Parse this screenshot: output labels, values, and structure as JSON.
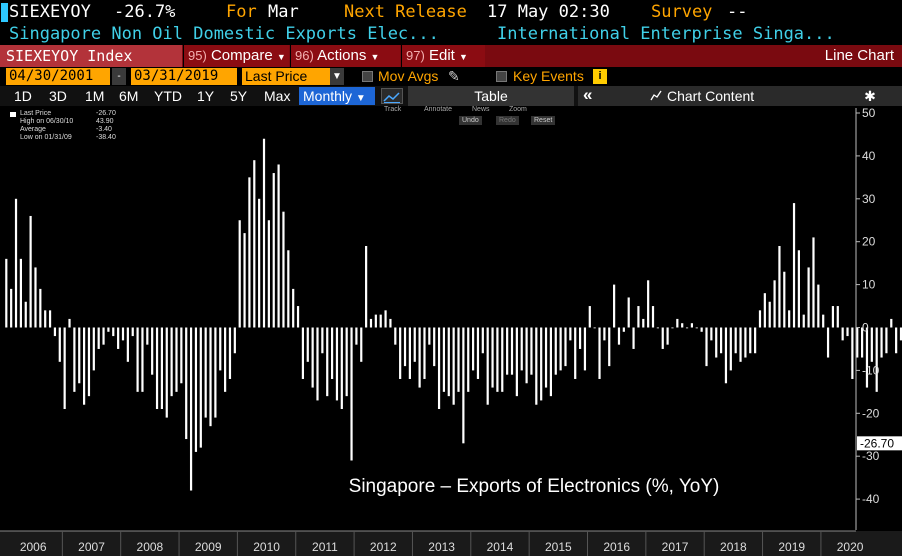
{
  "header": {
    "ticker": "SIEXEYOY",
    "last_value": "-26.7%",
    "for_label": "For",
    "for_value": "Mar",
    "next_release_label": "Next Release",
    "next_release_value": "17 May 02:30",
    "survey_label": "Survey",
    "survey_value": "--"
  },
  "subtitle": {
    "description": "Singapore Non Oil Domestic Exports Elec...",
    "source": "International Enterprise Singa..."
  },
  "toolbar": {
    "security": "SIEXEYOY Index",
    "compare_num": "95)",
    "compare_label": "Compare",
    "actions_num": "96)",
    "actions_label": "Actions",
    "edit_num": "97)",
    "edit_label": "Edit",
    "chart_type": "Line Chart"
  },
  "settings": {
    "start_date": "04/30/2001",
    "end_date": "03/31/2019",
    "field": "Last Price",
    "mov_avgs": "Mov Avgs",
    "key_events": "Key Events",
    "info": "i"
  },
  "periods": [
    "1D",
    "3D",
    "1M",
    "6M",
    "YTD",
    "1Y",
    "5Y",
    "Max"
  ],
  "frequency": "Monthly",
  "table_label": "Table",
  "collapse_icon": "«",
  "chart_content_label": "Chart Content",
  "chart_tools": {
    "track": "Track",
    "annotate": "Annotate",
    "news": "News",
    "zoom": "Zoom",
    "undo": "Undo",
    "redo": "Redo",
    "reset": "Reset"
  },
  "legend": [
    {
      "label": "Last Price",
      "value": "-26.70"
    },
    {
      "label": "High on 06/30/10",
      "value": "43.90"
    },
    {
      "label": "Average",
      "value": "-3.40"
    },
    {
      "label": "Low on 01/31/09",
      "value": "-38.40"
    }
  ],
  "colors": {
    "amber": "#ffa500",
    "cyan": "#40d0e8",
    "toolbar_red": "#7a0a10",
    "selected_blue": "#1d66d6",
    "bars": "#ffffff"
  },
  "chart_data": {
    "type": "bar",
    "title": "Singapore – Exports of Electronics (%, YoY)",
    "ylim": [
      -45,
      50
    ],
    "yticks": [
      50,
      40,
      30,
      20,
      10,
      0,
      -10,
      -20,
      -30,
      -40
    ],
    "xlim": [
      2006,
      2020.5
    ],
    "xticks": [
      "2006",
      "2007",
      "2008",
      "2009",
      "2010",
      "2011",
      "2012",
      "2013",
      "2014",
      "2015",
      "2016",
      "2017",
      "2018",
      "2019",
      "2020"
    ],
    "last_value_label": "-26.70",
    "series": [
      {
        "values": [
          16,
          9,
          30,
          16,
          6,
          26,
          14,
          9,
          4,
          4,
          -2,
          -8,
          -19,
          2,
          -15,
          -13,
          -18,
          -16,
          -10,
          -5,
          -4,
          -1,
          -2,
          -5,
          -3,
          -8,
          -2,
          -15,
          -15,
          -4,
          -11,
          -19,
          -19,
          -21,
          -16,
          -15,
          -13,
          -26,
          -38,
          -29,
          -28,
          -21,
          -23,
          -21,
          -10,
          -15,
          -12,
          -6,
          25,
          22,
          35,
          39,
          30,
          44,
          25,
          36,
          38,
          27,
          18,
          9,
          5,
          -12,
          -8,
          -14,
          -17,
          -6,
          -16,
          -12,
          -17,
          -19,
          -16,
          -31,
          -4,
          -8,
          19,
          2,
          3,
          3,
          4,
          2,
          -4,
          -12,
          -9,
          -12,
          -8,
          -14,
          -12,
          -4,
          -9,
          -19,
          -15,
          -16,
          -18,
          -15,
          -27,
          -15,
          -10,
          -12,
          -6,
          -18,
          -14,
          -15,
          -15,
          -11,
          -11,
          -16,
          -10,
          -13,
          -11,
          -18,
          -17,
          -14,
          -16,
          -11,
          -10,
          -9,
          -3,
          -12,
          -5,
          -10,
          5,
          0,
          -12,
          -3,
          -9,
          10,
          -4,
          -1,
          7,
          -5,
          5,
          2,
          11,
          5,
          0,
          -5,
          -4,
          0,
          2,
          1,
          0,
          1,
          0,
          -1,
          -9,
          -3,
          -7,
          -6,
          -13,
          -10,
          -6,
          -8,
          -7,
          -6,
          -6,
          4,
          8,
          6,
          11,
          19,
          13,
          4,
          29,
          18,
          3,
          14,
          21,
          10,
          3,
          -7,
          5,
          5,
          -3,
          -2,
          -12,
          -7,
          -7,
          -14,
          -8,
          -15,
          -7,
          -6,
          2,
          -6,
          -3,
          -15,
          -12,
          -7,
          -15,
          4,
          -16,
          -8,
          -27
        ]
      }
    ]
  }
}
